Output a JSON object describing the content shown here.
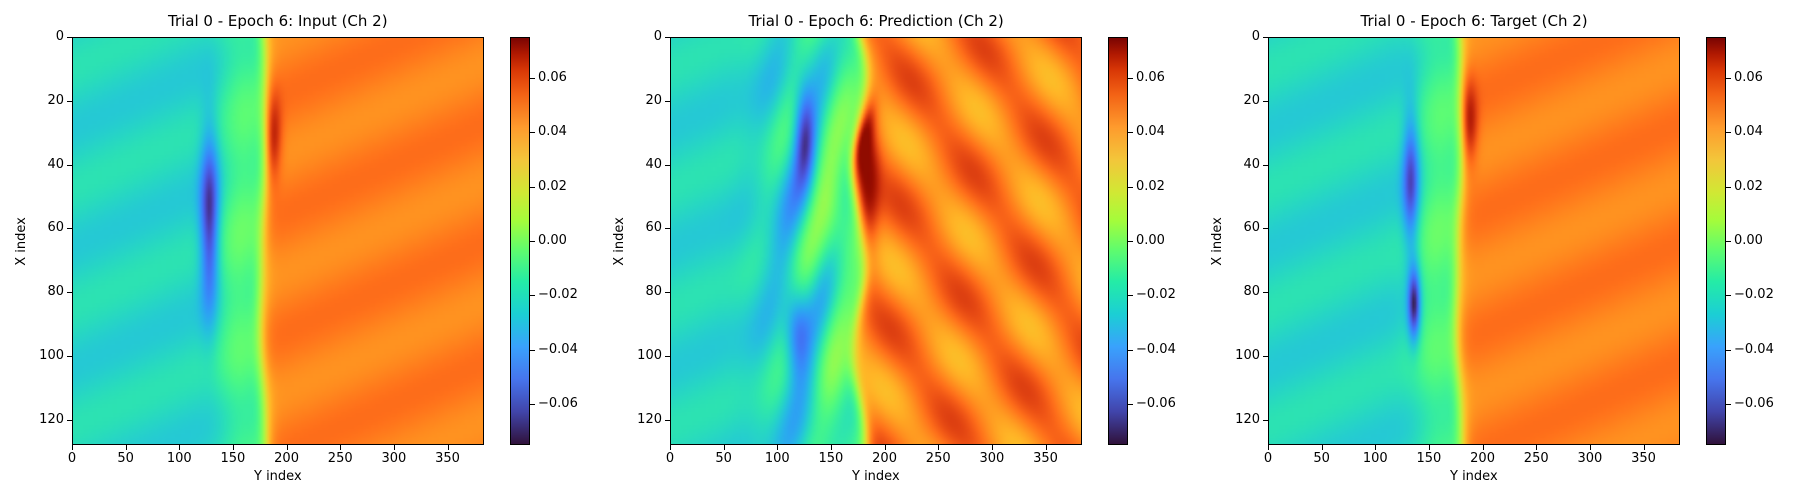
{
  "chart_data": [
    {
      "type": "heatmap",
      "title": "Trial 0 - Epoch 6: Input (Ch 2)",
      "xlabel": "Y index",
      "ylabel": "X index",
      "x_range": [
        0,
        384
      ],
      "y_range": [
        0,
        128
      ],
      "y_inverted": true,
      "x_ticks": [
        "0",
        "50",
        "100",
        "150",
        "200",
        "250",
        "300",
        "350"
      ],
      "y_ticks": [
        "0",
        "20",
        "40",
        "60",
        "80",
        "100",
        "120"
      ],
      "colorbar": {
        "colormap": "turbo",
        "range": [
          -0.075,
          0.075
        ],
        "ticks": [
          "0.06",
          "0.04",
          "0.02",
          "0.00",
          "−0.02",
          "−0.04",
          "−0.06"
        ]
      }
    },
    {
      "type": "heatmap",
      "title": "Trial 0 - Epoch 6: Prediction (Ch 2)",
      "xlabel": "Y index",
      "ylabel": "X index",
      "x_range": [
        0,
        384
      ],
      "y_range": [
        0,
        128
      ],
      "y_inverted": true,
      "x_ticks": [
        "0",
        "50",
        "100",
        "150",
        "200",
        "250",
        "300",
        "350"
      ],
      "y_ticks": [
        "0",
        "20",
        "40",
        "60",
        "80",
        "100",
        "120"
      ],
      "colorbar": {
        "colormap": "turbo",
        "range": [
          -0.075,
          0.075
        ],
        "ticks": [
          "0.06",
          "0.04",
          "0.02",
          "0.00",
          "−0.02",
          "−0.04",
          "−0.06"
        ]
      }
    },
    {
      "type": "heatmap",
      "title": "Trial 0 - Epoch 6: Target (Ch 2)",
      "xlabel": "Y index",
      "ylabel": "X index",
      "x_range": [
        0,
        384
      ],
      "y_range": [
        0,
        128
      ],
      "y_inverted": true,
      "x_ticks": [
        "0",
        "50",
        "100",
        "150",
        "200",
        "250",
        "300",
        "350"
      ],
      "y_ticks": [
        "0",
        "20",
        "40",
        "60",
        "80",
        "100",
        "120"
      ],
      "colorbar": {
        "colormap": "turbo",
        "range": [
          -0.075,
          0.075
        ],
        "ticks": [
          "0.06",
          "0.04",
          "0.02",
          "0.00",
          "−0.02",
          "−0.04",
          "−0.06"
        ]
      }
    }
  ]
}
